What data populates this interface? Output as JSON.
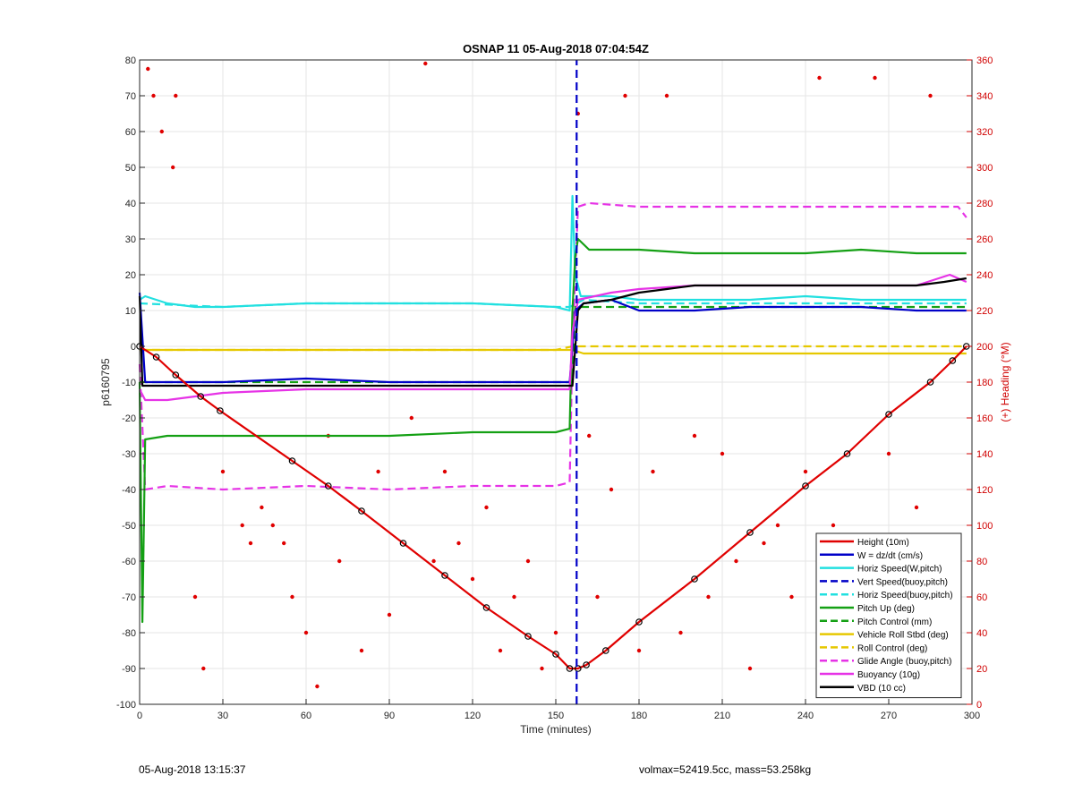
{
  "chart_data": {
    "type": "line",
    "title": "OSNAP 11 05-Aug-2018 07:04:54Z",
    "xlabel": "Time (minutes)",
    "ylabel": "p6160795",
    "ylabel_right": "(+) Heading (°M)",
    "xlim": [
      0,
      300
    ],
    "ylim": [
      -100,
      80
    ],
    "ylim_right": [
      0,
      360
    ],
    "x_ticks": [
      0,
      30,
      60,
      90,
      120,
      150,
      180,
      210,
      240,
      270,
      300
    ],
    "y_ticks": [
      -100,
      -90,
      -80,
      -70,
      -60,
      -50,
      -40,
      -30,
      -20,
      -10,
      0,
      10,
      20,
      30,
      40,
      50,
      60,
      70,
      80
    ],
    "y_ticks_right": [
      0,
      20,
      40,
      60,
      80,
      100,
      120,
      140,
      160,
      180,
      200,
      220,
      240,
      260,
      280,
      300,
      320,
      340,
      360
    ],
    "grid": true,
    "legend_position": "bottom-right",
    "legend": [
      {
        "label": "Height (10m)",
        "color": "#e00000",
        "style": "solid"
      },
      {
        "label": "W = dz/dt (cm/s)",
        "color": "#0000c8",
        "style": "solid"
      },
      {
        "label": "Horiz Speed(W,pitch)",
        "color": "#22e0e0",
        "style": "solid"
      },
      {
        "label": "Vert Speed(buoy,pitch)",
        "color": "#0000c8",
        "style": "dashed"
      },
      {
        "label": "Horiz Speed(buoy,pitch)",
        "color": "#22e0e0",
        "style": "dashed"
      },
      {
        "label": "Pitch Up (deg)",
        "color": "#14a014",
        "style": "solid"
      },
      {
        "label": "Pitch Control (mm)",
        "color": "#14a014",
        "style": "dashed"
      },
      {
        "label": "Vehicle Roll Stbd (deg)",
        "color": "#e6c800",
        "style": "solid"
      },
      {
        "label": "Roll Control (deg)",
        "color": "#e6c800",
        "style": "dashed"
      },
      {
        "label": "Glide Angle (buoy,pitch)",
        "color": "#e633e6",
        "style": "dashed"
      },
      {
        "label": "Buoyancy (10g)",
        "color": "#e633e6",
        "style": "solid"
      },
      {
        "label": "VBD (10 cc)",
        "color": "#000000",
        "style": "solid"
      }
    ],
    "series": [
      {
        "name": "Height (10m)",
        "x": [
          0,
          6,
          13,
          22,
          29,
          55,
          68,
          80,
          95,
          110,
          125,
          140,
          150,
          155,
          158,
          161,
          168,
          180,
          200,
          220,
          240,
          255,
          270,
          285,
          293,
          298
        ],
        "y": [
          0,
          -3,
          -8,
          -14,
          -18,
          -32,
          -39,
          -46,
          -55,
          -64,
          -73,
          -81,
          -86,
          -90,
          -90,
          -89,
          -85,
          -77,
          -65,
          -52,
          -39,
          -30,
          -19,
          -10,
          -4,
          0
        ]
      },
      {
        "name": "W = dz/dt (cm/s)",
        "x": [
          0,
          2,
          10,
          30,
          60,
          90,
          120,
          150,
          155,
          156,
          157,
          160,
          170,
          180,
          200,
          220,
          240,
          260,
          280,
          295,
          298
        ],
        "y": [
          15,
          -10,
          -10,
          -10,
          -9,
          -10,
          -10,
          -10,
          -10,
          0,
          10,
          12,
          13,
          10,
          10,
          11,
          11,
          11,
          10,
          10,
          10
        ]
      },
      {
        "name": "Horiz Speed(W,pitch)",
        "x": [
          0,
          2,
          10,
          20,
          30,
          60,
          90,
          120,
          150,
          155,
          156,
          157,
          159,
          170,
          180,
          200,
          220,
          240,
          260,
          280,
          298
        ],
        "y": [
          13,
          14,
          12,
          11,
          11,
          12,
          12,
          12,
          11,
          10,
          42,
          20,
          14,
          14,
          13,
          13,
          13,
          14,
          13,
          13,
          13
        ]
      },
      {
        "name": "Vert Speed(buoy,pitch)",
        "x": [
          157.5,
          157.5
        ],
        "y": [
          -100,
          80
        ]
      },
      {
        "name": "Horiz Speed(buoy,pitch)",
        "x": [
          0,
          30,
          60,
          90,
          120,
          150,
          155,
          160,
          180,
          220,
          260,
          298
        ],
        "y": [
          12,
          11,
          12,
          12,
          12,
          11,
          11,
          13,
          12,
          12,
          12,
          12
        ]
      },
      {
        "name": "Pitch Up (deg)",
        "x": [
          0,
          1,
          2,
          10,
          30,
          60,
          90,
          120,
          150,
          155,
          156,
          157,
          158,
          162,
          180,
          200,
          220,
          240,
          260,
          280,
          298
        ],
        "y": [
          -10,
          -77,
          -26,
          -25,
          -25,
          -25,
          -25,
          -24,
          -24,
          -23,
          10,
          25,
          30,
          27,
          27,
          26,
          26,
          26,
          27,
          26,
          26
        ]
      },
      {
        "name": "Pitch Control (mm)",
        "x": [
          0,
          2,
          150,
          156,
          157,
          160,
          298
        ],
        "y": [
          -10,
          -10,
          -10,
          -10,
          11,
          11,
          11
        ]
      },
      {
        "name": "Vehicle Roll Stbd (deg)",
        "x": [
          0,
          20,
          40,
          60,
          80,
          100,
          120,
          140,
          156,
          160,
          180,
          200,
          220,
          240,
          260,
          280,
          298
        ],
        "y": [
          -1,
          -1,
          -1,
          -1,
          -1,
          -1,
          -1,
          -1,
          -1,
          -2,
          -2,
          -2,
          -2,
          -2,
          -2,
          -2,
          -2
        ]
      },
      {
        "name": "Roll Control (deg)",
        "x": [
          0,
          150,
          156,
          160,
          298
        ],
        "y": [
          -1,
          -1,
          0,
          0,
          0
        ]
      },
      {
        "name": "Glide Angle (buoy,pitch)",
        "x": [
          0,
          2,
          10,
          30,
          60,
          90,
          120,
          150,
          155,
          156,
          158,
          162,
          180,
          220,
          260,
          295,
          298
        ],
        "y": [
          -5,
          -40,
          -39,
          -40,
          -39,
          -40,
          -39,
          -39,
          -38,
          0,
          39,
          40,
          39,
          39,
          39,
          39,
          36
        ]
      },
      {
        "name": "Buoyancy (10g)",
        "x": [
          0,
          2,
          10,
          30,
          60,
          90,
          120,
          150,
          155,
          156,
          158,
          170,
          180,
          200,
          220,
          240,
          260,
          280,
          292,
          298
        ],
        "y": [
          -12,
          -15,
          -15,
          -13,
          -12,
          -12,
          -12,
          -12,
          -12,
          4,
          13,
          15,
          16,
          17,
          17,
          17,
          17,
          17,
          20,
          18
        ]
      },
      {
        "name": "VBD (10 cc)",
        "x": [
          0,
          1,
          2,
          155,
          156,
          158,
          160,
          170,
          175,
          180,
          190,
          200,
          230,
          280,
          290,
          298
        ],
        "y": [
          14,
          -11,
          -11,
          -11,
          -11,
          10,
          12,
          13,
          14,
          15,
          16,
          17,
          17,
          17,
          18,
          19
        ]
      },
      {
        "name": "Heading",
        "axis": "right",
        "type": "scatter",
        "x": [
          3,
          5,
          8,
          12,
          13,
          20,
          23,
          30,
          37,
          40,
          44,
          48,
          52,
          55,
          60,
          64,
          68,
          72,
          80,
          86,
          90,
          98,
          103,
          106,
          110,
          115,
          120,
          125,
          130,
          135,
          140,
          145,
          150,
          158,
          162,
          165,
          170,
          175,
          180,
          185,
          190,
          195,
          200,
          205,
          210,
          215,
          220,
          225,
          230,
          235,
          240,
          245,
          250,
          255,
          260,
          265,
          270,
          275,
          280,
          285,
          290,
          295
        ],
        "y": [
          355,
          340,
          320,
          300,
          340,
          60,
          20,
          130,
          100,
          90,
          110,
          100,
          90,
          60,
          40,
          10,
          150,
          80,
          30,
          130,
          50,
          160,
          358,
          80,
          130,
          90,
          70,
          110,
          30,
          60,
          80,
          20,
          40,
          330,
          150,
          60,
          120,
          340,
          30,
          130,
          340,
          40,
          150,
          60,
          140,
          80,
          20,
          90,
          100,
          60,
          130,
          350,
          100,
          40,
          90,
          350,
          140,
          70,
          110,
          340,
          90,
          60
        ]
      }
    ]
  },
  "footer": {
    "left": "05-Aug-2018 13:15:37",
    "right": "volmax=52419.5cc, mass=53.258kg"
  }
}
